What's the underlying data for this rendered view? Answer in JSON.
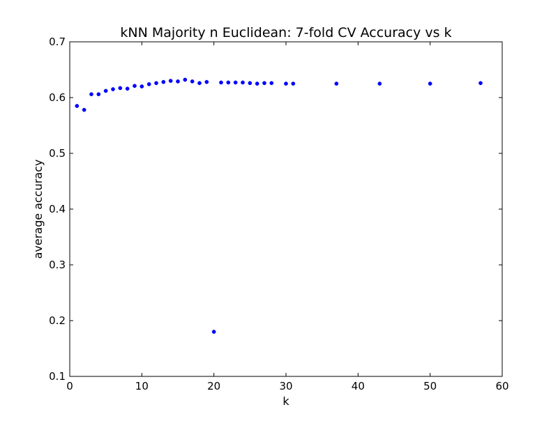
{
  "colors": {
    "marker": "#0000ff",
    "axes": "#000000",
    "background": "#ffffff"
  },
  "chart_data": {
    "type": "scatter",
    "title": "kNN Majority n Euclidean: 7-fold CV Accuracy vs k",
    "xlabel": "k",
    "ylabel": "average accuracy",
    "xlim": [
      0,
      60
    ],
    "ylim": [
      0.1,
      0.7
    ],
    "xticks": [
      0,
      10,
      20,
      30,
      40,
      50,
      60
    ],
    "xtick_labels": [
      "0",
      "10",
      "20",
      "30",
      "40",
      "50",
      "60"
    ],
    "yticks": [
      0.1,
      0.2,
      0.3,
      0.4,
      0.5,
      0.6,
      0.7
    ],
    "ytick_labels": [
      "0.1",
      "0.2",
      "0.3",
      "0.4",
      "0.5",
      "0.6",
      "0.7"
    ],
    "grid": false,
    "legend": null,
    "series": [
      {
        "points": [
          {
            "x": 1,
            "y": 0.585
          },
          {
            "x": 2,
            "y": 0.578
          },
          {
            "x": 3,
            "y": 0.606
          },
          {
            "x": 4,
            "y": 0.606
          },
          {
            "x": 5,
            "y": 0.612
          },
          {
            "x": 6,
            "y": 0.615
          },
          {
            "x": 7,
            "y": 0.617
          },
          {
            "x": 8,
            "y": 0.616
          },
          {
            "x": 9,
            "y": 0.621
          },
          {
            "x": 10,
            "y": 0.62
          },
          {
            "x": 11,
            "y": 0.624
          },
          {
            "x": 12,
            "y": 0.626
          },
          {
            "x": 13,
            "y": 0.628
          },
          {
            "x": 14,
            "y": 0.63
          },
          {
            "x": 15,
            "y": 0.629
          },
          {
            "x": 16,
            "y": 0.632
          },
          {
            "x": 17,
            "y": 0.629
          },
          {
            "x": 18,
            "y": 0.626
          },
          {
            "x": 19,
            "y": 0.628
          },
          {
            "x": 20,
            "y": 0.18
          },
          {
            "x": 21,
            "y": 0.627
          },
          {
            "x": 22,
            "y": 0.627
          },
          {
            "x": 23,
            "y": 0.627
          },
          {
            "x": 24,
            "y": 0.627
          },
          {
            "x": 25,
            "y": 0.626
          },
          {
            "x": 26,
            "y": 0.625
          },
          {
            "x": 27,
            "y": 0.626
          },
          {
            "x": 28,
            "y": 0.626
          },
          {
            "x": 30,
            "y": 0.625
          },
          {
            "x": 31,
            "y": 0.625
          },
          {
            "x": 37,
            "y": 0.625
          },
          {
            "x": 43,
            "y": 0.625
          },
          {
            "x": 50,
            "y": 0.625
          },
          {
            "x": 57,
            "y": 0.626
          }
        ]
      }
    ]
  }
}
